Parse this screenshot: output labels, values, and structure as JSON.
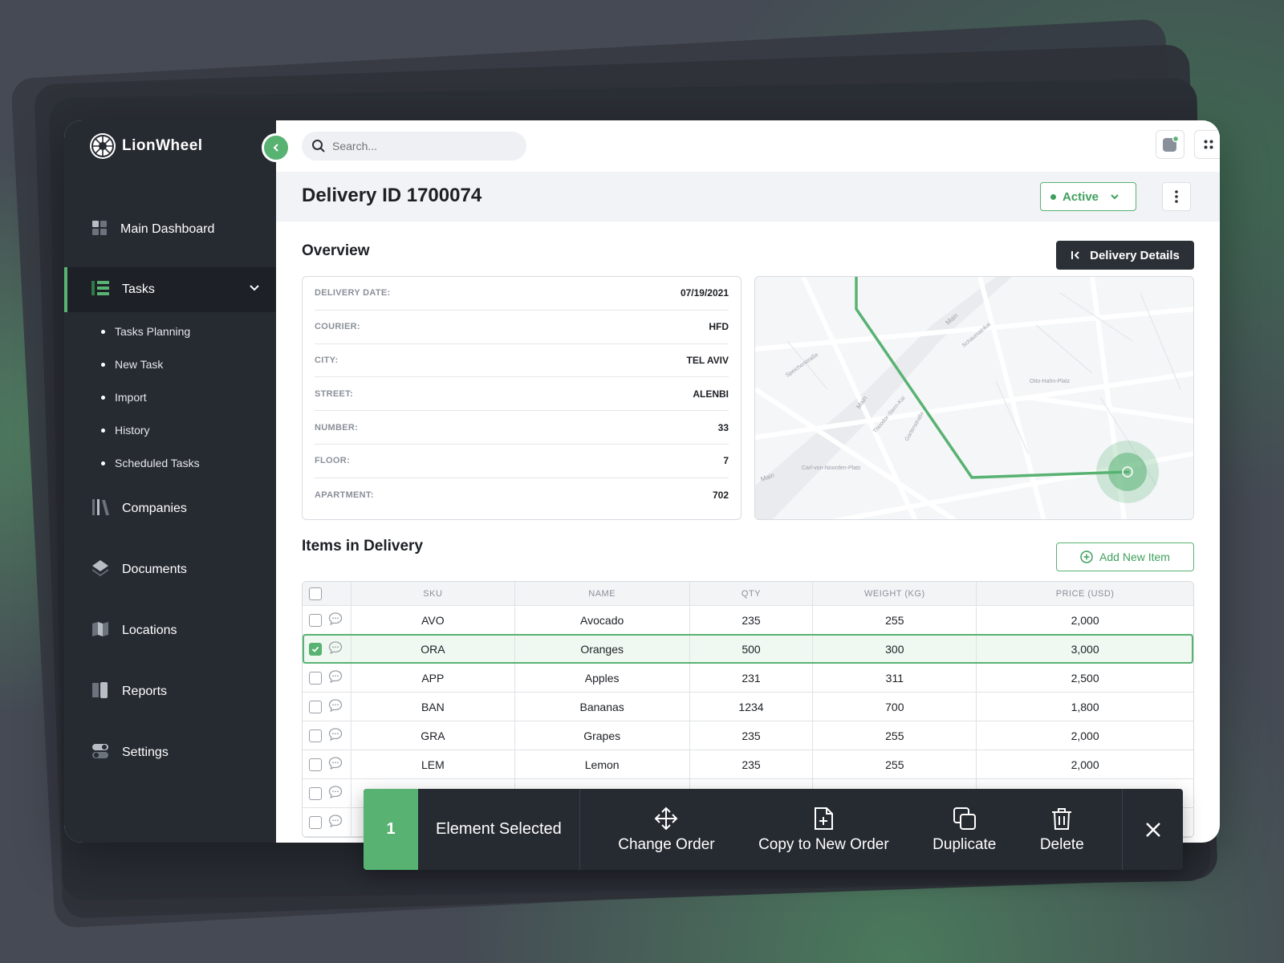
{
  "app": {
    "name": "LionWheel"
  },
  "sidebar": {
    "items": [
      {
        "label": "Main Dashboard",
        "icon": "dashboard-icon"
      },
      {
        "label": "Tasks",
        "icon": "tasks-icon",
        "active": true,
        "subitems": [
          "Tasks Planning",
          "New Task",
          "Import",
          "History",
          "Scheduled Tasks"
        ]
      },
      {
        "label": "Companies",
        "icon": "companies-icon"
      },
      {
        "label": "Documents",
        "icon": "documents-icon"
      },
      {
        "label": "Locations",
        "icon": "locations-icon"
      },
      {
        "label": "Reports",
        "icon": "reports-icon"
      },
      {
        "label": "Settings",
        "icon": "settings-icon"
      }
    ]
  },
  "search": {
    "placeholder": "Search..."
  },
  "page": {
    "title": "Delivery ID 1700074",
    "status": "Active",
    "overview_title": "Overview",
    "details_button": "Delivery Details",
    "items_title": "Items in Delivery",
    "add_item_button": "Add New Item"
  },
  "overview": {
    "fields": [
      {
        "label": "DELIVERY DATE:",
        "value": "07/19/2021"
      },
      {
        "label": "COURIER:",
        "value": "HFD"
      },
      {
        "label": "CITY:",
        "value": "TEL AVIV"
      },
      {
        "label": "STREET:",
        "value": "ALENBI"
      },
      {
        "label": "NUMBER:",
        "value": "33"
      },
      {
        "label": "FLOOR:",
        "value": "7"
      },
      {
        "label": "APARTMENT:",
        "value": "702"
      }
    ]
  },
  "map": {
    "labels": [
      "Main",
      "Main",
      "Main",
      "Schaumainkai",
      "Otto-Hahn-Platz",
      "Carl-von-Noorden-Platz",
      "Gartenstraße",
      "Speicherstraße",
      "Theodor-Stern-Kai"
    ]
  },
  "table": {
    "headers": [
      "SKU",
      "NAME",
      "QTY",
      "WEIGHT (KG)",
      "PRICE (USD)"
    ],
    "rows": [
      {
        "sku": "AVO",
        "name": "Avocado",
        "qty": "235",
        "weight": "255",
        "price": "2,000",
        "checked": false
      },
      {
        "sku": "ORA",
        "name": "Oranges",
        "qty": "500",
        "weight": "300",
        "price": "3,000",
        "checked": true
      },
      {
        "sku": "APP",
        "name": "Apples",
        "qty": "231",
        "weight": "311",
        "price": "2,500",
        "checked": false
      },
      {
        "sku": "BAN",
        "name": "Bananas",
        "qty": "1234",
        "weight": "700",
        "price": "1,800",
        "checked": false
      },
      {
        "sku": "GRA",
        "name": "Grapes",
        "qty": "235",
        "weight": "255",
        "price": "2,000",
        "checked": false
      },
      {
        "sku": "LEM",
        "name": "Lemon",
        "qty": "235",
        "weight": "255",
        "price": "2,000",
        "checked": false
      },
      {
        "sku": "",
        "name": "",
        "qty": "",
        "weight": "",
        "price": "",
        "checked": false
      },
      {
        "sku": "",
        "name": "",
        "qty": "",
        "weight": "",
        "price": "",
        "checked": false
      }
    ]
  },
  "action_bar": {
    "count": "1",
    "selected_label": "Element Selected",
    "actions": [
      "Change Order",
      "Copy to New Order",
      "Duplicate",
      "Delete"
    ]
  },
  "colors": {
    "accent": "#58b272",
    "sidebar": "#262a31"
  }
}
